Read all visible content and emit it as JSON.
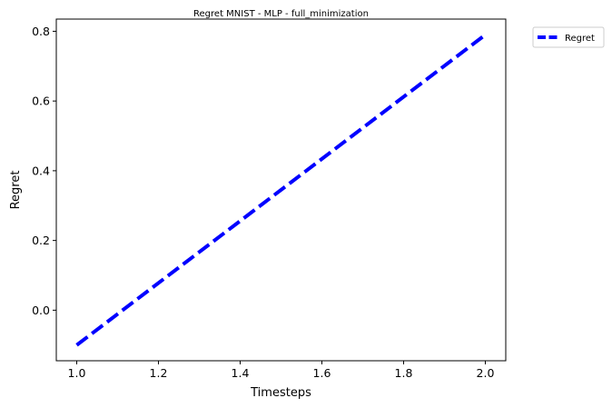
{
  "chart_data": {
    "type": "line",
    "title": "Regret MNIST - MLP - full_minimization",
    "xlabel": "Timesteps",
    "ylabel": "Regret",
    "xlim": [
      0.95,
      2.05
    ],
    "ylim": [
      -0.145,
      0.835
    ],
    "xticks": [
      1.0,
      1.2,
      1.4,
      1.6,
      1.8,
      2.0
    ],
    "xtick_labels": [
      "1.0",
      "1.2",
      "1.4",
      "1.6",
      "1.8",
      "2.0"
    ],
    "yticks": [
      0.0,
      0.2,
      0.4,
      0.6,
      0.8
    ],
    "ytick_labels": [
      "0.0",
      "0.2",
      "0.4",
      "0.6",
      "0.8"
    ],
    "grid": false,
    "legend_position": "outside-top-right",
    "series": [
      {
        "name": "Regret",
        "color": "#0000ff",
        "line_style": "dashed",
        "x": [
          1,
          2
        ],
        "y": [
          -0.1,
          0.79
        ]
      }
    ]
  }
}
